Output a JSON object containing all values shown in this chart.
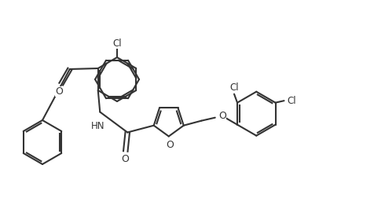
{
  "bg_color": "#ffffff",
  "line_color": "#333333",
  "line_width": 1.5,
  "text_color": "#333333",
  "font_size": 8.5,
  "figsize": [
    4.77,
    2.52
  ],
  "dpi": 100,
  "xlim": [
    0,
    9.54
  ],
  "ylim": [
    0,
    5.04
  ]
}
